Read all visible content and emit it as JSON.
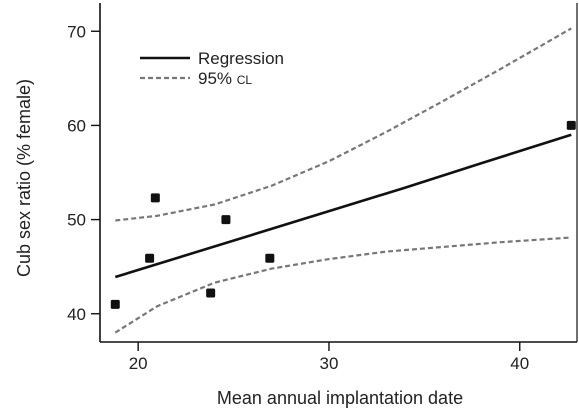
{
  "chart_data": {
    "type": "scatter",
    "title": "",
    "xlabel": "Mean annual implantation date",
    "ylabel": "Cub sex ratio (% female)",
    "xlim": [
      18,
      43
    ],
    "ylim": [
      37,
      73
    ],
    "xticks": [
      20,
      30,
      40
    ],
    "yticks": [
      40,
      50,
      60,
      70
    ],
    "grid": false,
    "legend_position": "top-left",
    "legend": {
      "regression": "Regression",
      "ci_prefix": "95% ",
      "ci_suffix": "CL"
    },
    "points": [
      {
        "x": 18.8,
        "y": 41.0
      },
      {
        "x": 20.6,
        "y": 45.9
      },
      {
        "x": 20.9,
        "y": 52.3
      },
      {
        "x": 23.8,
        "y": 42.2
      },
      {
        "x": 24.6,
        "y": 50.0
      },
      {
        "x": 26.9,
        "y": 45.9
      },
      {
        "x": 42.7,
        "y": 60.0
      }
    ],
    "regression": [
      {
        "x": 18.8,
        "y": 43.9
      },
      {
        "x": 22.0,
        "y": 45.9
      },
      {
        "x": 26.0,
        "y": 48.4
      },
      {
        "x": 30.0,
        "y": 50.9
      },
      {
        "x": 34.0,
        "y": 53.4
      },
      {
        "x": 38.0,
        "y": 56.0
      },
      {
        "x": 42.7,
        "y": 59.0
      }
    ],
    "ci_upper": [
      {
        "x": 18.8,
        "y": 49.9
      },
      {
        "x": 21.0,
        "y": 50.4
      },
      {
        "x": 24.0,
        "y": 51.6
      },
      {
        "x": 27.0,
        "y": 53.6
      },
      {
        "x": 30.0,
        "y": 56.2
      },
      {
        "x": 33.0,
        "y": 59.3
      },
      {
        "x": 36.0,
        "y": 62.6
      },
      {
        "x": 39.0,
        "y": 66.0
      },
      {
        "x": 42.7,
        "y": 70.3
      }
    ],
    "ci_lower": [
      {
        "x": 18.8,
        "y": 38.0
      },
      {
        "x": 21.0,
        "y": 40.8
      },
      {
        "x": 24.0,
        "y": 43.3
      },
      {
        "x": 27.0,
        "y": 44.8
      },
      {
        "x": 30.0,
        "y": 45.8
      },
      {
        "x": 33.0,
        "y": 46.6
      },
      {
        "x": 36.0,
        "y": 47.1
      },
      {
        "x": 39.0,
        "y": 47.6
      },
      {
        "x": 42.7,
        "y": 48.1
      }
    ],
    "colors": {
      "axis": "#111111",
      "regression": "#111111",
      "ci": "#777777",
      "points": "#111111"
    }
  }
}
